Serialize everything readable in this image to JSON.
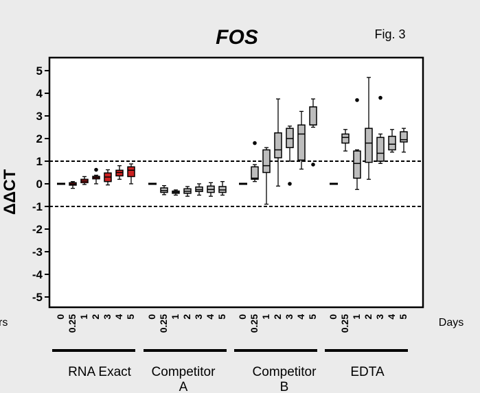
{
  "title": "FOS",
  "fig_label": "Fig. 3",
  "chart_data": {
    "type": "box",
    "title": "FOS",
    "ylabel": "ΔΔCT",
    "ylabel_subscript": "T",
    "xlabel_right": "Days",
    "xlabel_left_fragment": "rs",
    "ylim": [
      -5.5,
      5.5
    ],
    "yticks": [
      5,
      4,
      3,
      2,
      1,
      0,
      -1,
      -2,
      -3,
      -4,
      -5
    ],
    "reference_lines": [
      1,
      -1
    ],
    "day_ticks": [
      "0",
      "0.25",
      "1",
      "2",
      "3",
      "4",
      "5"
    ],
    "groups": [
      {
        "name": "RNA Exact",
        "boxes": [
          {
            "day": "0",
            "min": 0,
            "q1": 0,
            "median": 0,
            "q3": 0,
            "max": 0,
            "fill": "#e6e6e6",
            "outliers": []
          },
          {
            "day": "0.25",
            "min": -0.2,
            "q1": -0.06,
            "median": -0.01,
            "q3": 0.05,
            "max": 0.1,
            "fill": "#cc2222",
            "outliers": []
          },
          {
            "day": "1",
            "min": -0.03,
            "q1": 0.05,
            "median": 0.12,
            "q3": 0.2,
            "max": 0.32,
            "fill": "#cc2222",
            "outliers": []
          },
          {
            "day": "2",
            "min": 0.0,
            "q1": 0.22,
            "median": 0.28,
            "q3": 0.33,
            "max": 0.38,
            "fill": "#cc2222",
            "outliers": [
              0.62
            ]
          },
          {
            "day": "3",
            "min": -0.05,
            "q1": 0.1,
            "median": 0.3,
            "q3": 0.48,
            "max": 0.62,
            "fill": "#cc2222",
            "outliers": []
          },
          {
            "day": "4",
            "min": 0.2,
            "q1": 0.35,
            "median": 0.5,
            "q3": 0.6,
            "max": 0.8,
            "fill": "#cc2222",
            "outliers": []
          },
          {
            "day": "5",
            "min": 0.0,
            "q1": 0.32,
            "median": 0.6,
            "q3": 0.75,
            "max": 0.88,
            "fill": "#cc2222",
            "outliers": []
          }
        ]
      },
      {
        "name": "Competitor A",
        "boxes": [
          {
            "day": "0",
            "min": 0,
            "q1": 0,
            "median": 0,
            "q3": 0,
            "max": 0,
            "fill": "#bdbdbd",
            "outliers": []
          },
          {
            "day": "0.25",
            "min": -0.48,
            "q1": -0.38,
            "median": -0.3,
            "q3": -0.18,
            "max": -0.08,
            "fill": "#bdbdbd",
            "outliers": []
          },
          {
            "day": "1",
            "min": -0.5,
            "q1": -0.42,
            "median": -0.37,
            "q3": -0.32,
            "max": -0.27,
            "fill": "#bdbdbd",
            "outliers": []
          },
          {
            "day": "2",
            "min": -0.55,
            "q1": -0.42,
            "median": -0.33,
            "q3": -0.22,
            "max": -0.12,
            "fill": "#bdbdbd",
            "outliers": []
          },
          {
            "day": "3",
            "min": -0.5,
            "q1": -0.34,
            "median": -0.26,
            "q3": -0.14,
            "max": 0.0,
            "fill": "#bdbdbd",
            "outliers": []
          },
          {
            "day": "4",
            "min": -0.55,
            "q1": -0.38,
            "median": -0.25,
            "q3": -0.1,
            "max": 0.05,
            "fill": "#bdbdbd",
            "outliers": []
          },
          {
            "day": "5",
            "min": -0.5,
            "q1": -0.38,
            "median": -0.27,
            "q3": -0.12,
            "max": 0.1,
            "fill": "#bdbdbd",
            "outliers": []
          }
        ]
      },
      {
        "name": "Competitor B",
        "boxes": [
          {
            "day": "0",
            "min": 0,
            "q1": 0,
            "median": 0,
            "q3": 0,
            "max": 0,
            "fill": "#bdbdbd",
            "outliers": []
          },
          {
            "day": "0.25",
            "min": 0.1,
            "q1": 0.2,
            "median": 0.25,
            "q3": 0.75,
            "max": 0.85,
            "fill": "#bdbdbd",
            "outliers": [
              1.8
            ]
          },
          {
            "day": "1",
            "min": -0.9,
            "q1": 0.5,
            "median": 0.8,
            "q3": 1.5,
            "max": 1.6,
            "fill": "#bdbdbd",
            "outliers": []
          },
          {
            "day": "2",
            "min": -0.1,
            "q1": 1.15,
            "median": 1.5,
            "q3": 2.25,
            "max": 3.75,
            "fill": "#bdbdbd",
            "outliers": []
          },
          {
            "day": "3",
            "min": 1.0,
            "q1": 1.6,
            "median": 2.0,
            "q3": 2.45,
            "max": 2.55,
            "fill": "#bdbdbd",
            "outliers": [
              0.0
            ]
          },
          {
            "day": "4",
            "min": 0.65,
            "q1": 1.05,
            "median": 2.2,
            "q3": 2.6,
            "max": 3.2,
            "fill": "#bdbdbd",
            "outliers": []
          },
          {
            "day": "5",
            "min": 2.5,
            "q1": 2.6,
            "median": 2.6,
            "q3": 3.4,
            "max": 3.75,
            "fill": "#bdbdbd",
            "outliers": [
              0.85
            ]
          }
        ]
      },
      {
        "name": "EDTA",
        "boxes": [
          {
            "day": "0",
            "min": 0,
            "q1": 0,
            "median": 0,
            "q3": 0,
            "max": 0,
            "fill": "#bdbdbd",
            "outliers": []
          },
          {
            "day": "0.25",
            "min": 1.45,
            "q1": 1.8,
            "median": 2.05,
            "q3": 2.2,
            "max": 2.4,
            "fill": "#bdbdbd",
            "outliers": []
          },
          {
            "day": "1",
            "min": -0.25,
            "q1": 0.25,
            "median": 0.9,
            "q3": 1.45,
            "max": 1.5,
            "fill": "#bdbdbd",
            "outliers": [
              3.7
            ]
          },
          {
            "day": "2",
            "min": 0.2,
            "q1": 0.95,
            "median": 1.8,
            "q3": 2.45,
            "max": 4.7,
            "fill": "#bdbdbd",
            "outliers": []
          },
          {
            "day": "3",
            "min": 0.9,
            "q1": 1.0,
            "median": 1.35,
            "q3": 2.05,
            "max": 2.2,
            "fill": "#bdbdbd",
            "outliers": [
              3.8
            ]
          },
          {
            "day": "4",
            "min": 1.4,
            "q1": 1.5,
            "median": 1.75,
            "q3": 2.1,
            "max": 2.4,
            "fill": "#bdbdbd",
            "outliers": []
          },
          {
            "day": "5",
            "min": 1.4,
            "q1": 1.85,
            "median": 1.95,
            "q3": 2.3,
            "max": 2.45,
            "fill": "#bdbdbd",
            "outliers": []
          }
        ]
      }
    ],
    "group_label_lines": [
      [
        "RNA Exact"
      ],
      [
        "Competitor",
        "A"
      ],
      [
        "Competitor",
        "B"
      ],
      [
        "EDTA"
      ]
    ]
  }
}
